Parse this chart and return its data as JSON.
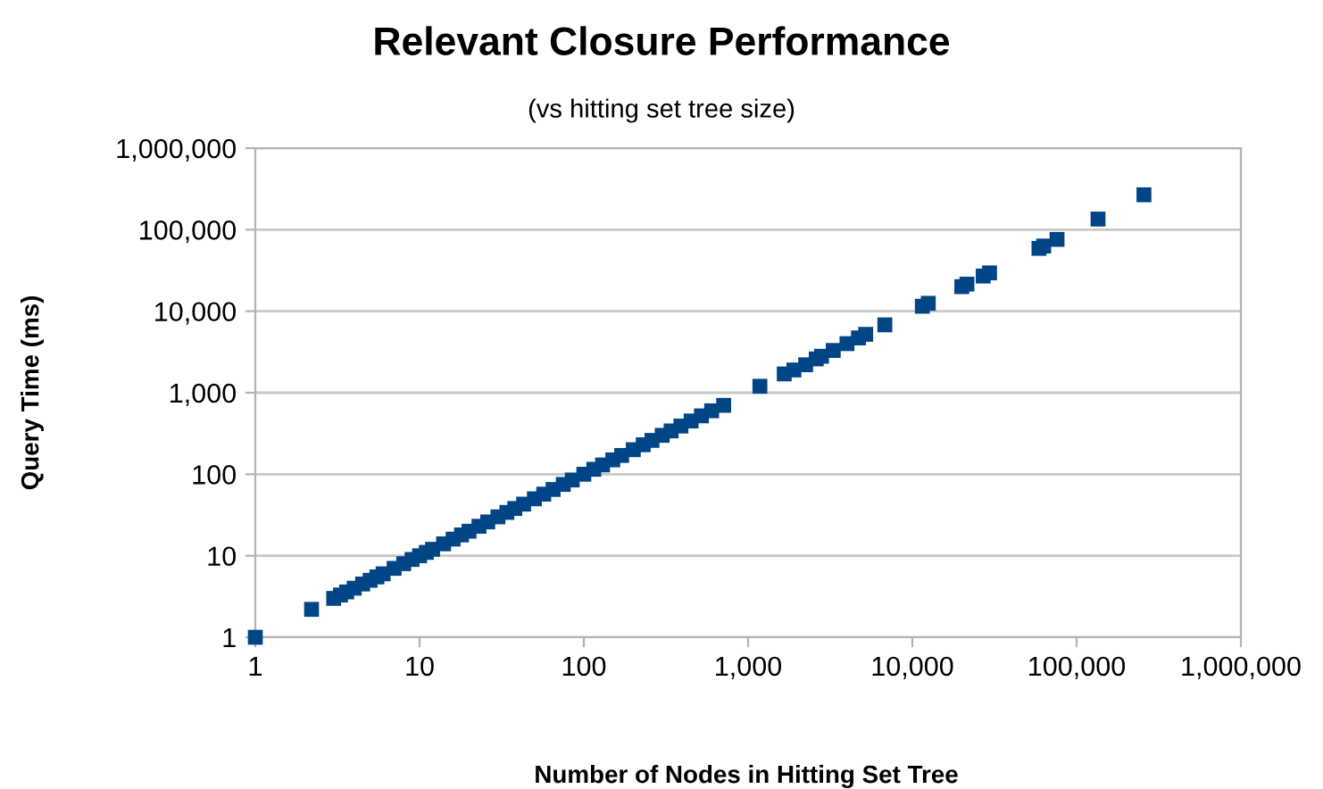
{
  "chart_data": {
    "type": "scatter",
    "title": "Relevant Closure Performance",
    "subtitle": "(vs hitting set tree size)",
    "xlabel": "Number of Nodes in Hitting Set Tree",
    "ylabel": "Query Time (ms)",
    "log": "xy",
    "grid": "y",
    "marker": "square",
    "legend": false,
    "xlim": [
      1,
      1000000
    ],
    "ylim": [
      1,
      1000000
    ],
    "xticks": [
      1,
      10,
      100,
      {
        "value": 1000,
        "label": "1,000"
      },
      {
        "value": 10000,
        "label": "10,000"
      },
      {
        "value": 100000,
        "label": "100,000"
      },
      {
        "value": 1000000,
        "label": "1,000,000"
      }
    ],
    "yticks": [
      1,
      10,
      100,
      {
        "value": 1000,
        "label": "1,000"
      },
      {
        "value": 10000,
        "label": "10,000"
      },
      {
        "value": 100000,
        "label": "100,000"
      },
      {
        "value": 1000000,
        "label": "1,000,000"
      }
    ],
    "series": [
      {
        "color": "#004586",
        "x": [
          1,
          2.2,
          3,
          3.3,
          3.6,
          4,
          4.5,
          5,
          5.5,
          6,
          7,
          8,
          9,
          10,
          11,
          12,
          14,
          16,
          18,
          20,
          23,
          26,
          30,
          34,
          38,
          43,
          50,
          57,
          65,
          75,
          85,
          100,
          115,
          130,
          150,
          170,
          200,
          230,
          260,
          300,
          340,
          390,
          450,
          520,
          600,
          710,
          1180,
          1660,
          1900,
          2240,
          2600,
          2800,
          3300,
          4000,
          4700,
          5200,
          6800,
          11500,
          12500,
          20000,
          21500,
          27000,
          29500,
          59000,
          63000,
          76000,
          135000,
          257000
        ],
        "values": [
          1,
          2.2,
          3,
          3.3,
          3.6,
          4,
          4.5,
          5,
          5.5,
          6,
          7,
          8,
          9,
          10,
          11,
          12,
          14,
          16,
          18,
          20,
          23,
          26,
          30,
          34,
          38,
          43,
          50,
          57,
          65,
          75,
          85,
          100,
          115,
          130,
          150,
          170,
          200,
          230,
          260,
          300,
          340,
          390,
          450,
          520,
          600,
          700,
          1200,
          1700,
          1900,
          2200,
          2600,
          2800,
          3300,
          4000,
          4700,
          5200,
          6800,
          11500,
          12500,
          20000,
          21500,
          27000,
          29500,
          59000,
          63000,
          76000,
          135000,
          268000
        ]
      }
    ]
  }
}
